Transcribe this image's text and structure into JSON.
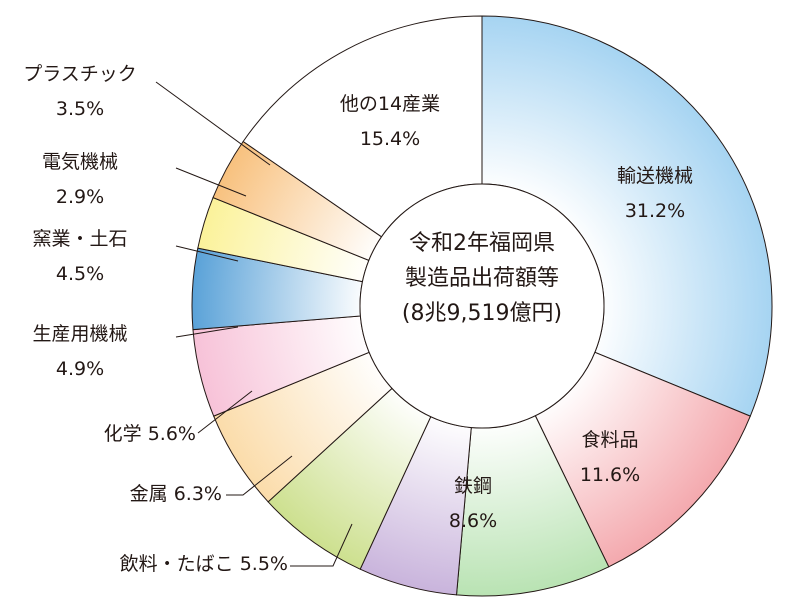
{
  "chart_data": {
    "type": "donut",
    "title_lines": [
      "令和2年福岡県",
      "製造品出荷額等",
      "(8兆9,519億円)"
    ],
    "slices": [
      {
        "label": "輸送機械",
        "value": 31.2,
        "value_label": "31.2%",
        "color": "#a6d4f2"
      },
      {
        "label": "食料品",
        "value": 11.6,
        "value_label": "11.6%",
        "color": "#f4a9ae"
      },
      {
        "label": "鉄鋼",
        "value": 8.6,
        "value_label": "8.6%",
        "color": "#b9e3b3"
      },
      {
        "label": "飲料・たばこ",
        "value": 5.5,
        "value_label": "5.5%",
        "color": "#c9b4dc"
      },
      {
        "label": "金属",
        "value": 6.3,
        "value_label": "6.3%",
        "color": "#cde08f"
      },
      {
        "label": "化学",
        "value": 5.6,
        "value_label": "5.6%",
        "color": "#fbdcaa"
      },
      {
        "label": "生産用機械",
        "value": 4.9,
        "value_label": "4.9%",
        "color": "#f7c2d8"
      },
      {
        "label": "窯業・土石",
        "value": 4.5,
        "value_label": "4.5%",
        "color": "#5aa2d8"
      },
      {
        "label": "電気機械",
        "value": 2.9,
        "value_label": "2.9%",
        "color": "#fbf29a"
      },
      {
        "label": "プラスチック",
        "value": 3.5,
        "value_label": "3.5%",
        "color": "#f8c17e"
      },
      {
        "label": "他の14産業",
        "value": 15.4,
        "value_label": "15.4%",
        "color": "#ffffff"
      }
    ]
  }
}
